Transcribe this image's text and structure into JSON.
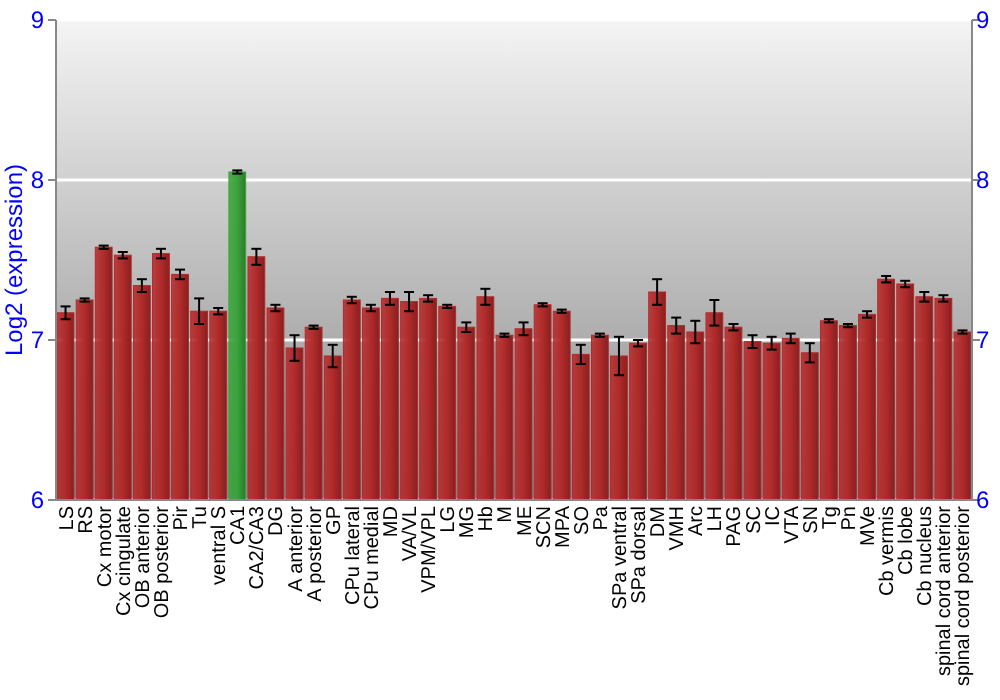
{
  "chart_data": {
    "type": "bar",
    "ylabel": "Log2 (expression)",
    "categories": [
      "LS",
      "RS",
      "Cx motor",
      "Cx cingulate",
      "OB anterior",
      "OB posterior",
      "Pir",
      "Tu",
      "ventral S",
      "CA1",
      "CA2/CA3",
      "DG",
      "A anterior",
      "A posterior",
      "GP",
      "CPu lateral",
      "CPu medial",
      "MD",
      "VA/VL",
      "VPM/VPL",
      "LG",
      "MG",
      "Hb",
      "M",
      "ME",
      "SCN",
      "MPA",
      "SO",
      "Pa",
      "SPa ventral",
      "SPa dorsal",
      "DM",
      "VMH",
      "Arc",
      "LH",
      "PAG",
      "SC",
      "IC",
      "VTA",
      "SN",
      "Tg",
      "Pn",
      "MVe",
      "Cb vermis",
      "Cb lobe",
      "Cb nucleus",
      "spinal cord anterior",
      "spinal cord posterior"
    ],
    "values": [
      7.17,
      7.25,
      7.58,
      7.53,
      7.34,
      7.54,
      7.41,
      7.18,
      7.18,
      8.05,
      7.52,
      7.2,
      6.95,
      7.08,
      6.9,
      7.25,
      7.2,
      7.26,
      7.24,
      7.26,
      7.21,
      7.08,
      7.27,
      7.03,
      7.07,
      7.22,
      7.18,
      6.91,
      7.03,
      6.9,
      6.98,
      7.3,
      7.09,
      7.05,
      7.17,
      7.08,
      6.99,
      6.98,
      7.01,
      6.92,
      7.12,
      7.09,
      7.16,
      7.38,
      7.35,
      7.27,
      7.26,
      7.05
    ],
    "errors": [
      0.04,
      0.01,
      0.01,
      0.02,
      0.04,
      0.03,
      0.03,
      0.08,
      0.02,
      0.01,
      0.05,
      0.02,
      0.08,
      0.01,
      0.07,
      0.02,
      0.02,
      0.04,
      0.06,
      0.02,
      0.01,
      0.03,
      0.05,
      0.01,
      0.04,
      0.01,
      0.01,
      0.06,
      0.01,
      0.12,
      0.02,
      0.08,
      0.05,
      0.07,
      0.08,
      0.02,
      0.04,
      0.04,
      0.03,
      0.06,
      0.01,
      0.01,
      0.02,
      0.02,
      0.02,
      0.03,
      0.02,
      0.01
    ],
    "colors": [
      "#b22a2a",
      "#b22a2a",
      "#b22a2a",
      "#b22a2a",
      "#b22a2a",
      "#b22a2a",
      "#b22a2a",
      "#b22a2a",
      "#b22a2a",
      "#3aa33a",
      "#b22a2a",
      "#b22a2a",
      "#b22a2a",
      "#b22a2a",
      "#b22a2a",
      "#b22a2a",
      "#b22a2a",
      "#b22a2a",
      "#b22a2a",
      "#b22a2a",
      "#b22a2a",
      "#b22a2a",
      "#b22a2a",
      "#b22a2a",
      "#b22a2a",
      "#b22a2a",
      "#b22a2a",
      "#b22a2a",
      "#b22a2a",
      "#b22a2a",
      "#b22a2a",
      "#b22a2a",
      "#b22a2a",
      "#b22a2a",
      "#b22a2a",
      "#b22a2a",
      "#b22a2a",
      "#b22a2a",
      "#b22a2a",
      "#b22a2a",
      "#b22a2a",
      "#b22a2a",
      "#b22a2a",
      "#b22a2a",
      "#b22a2a",
      "#b22a2a",
      "#b22a2a",
      "#b22a2a"
    ],
    "ylim": [
      6,
      9
    ],
    "yticks": [
      6,
      7,
      8,
      9
    ],
    "y2lim": [
      6,
      9
    ],
    "y2ticks": [
      6,
      7,
      8,
      9
    ],
    "grid": "y"
  }
}
